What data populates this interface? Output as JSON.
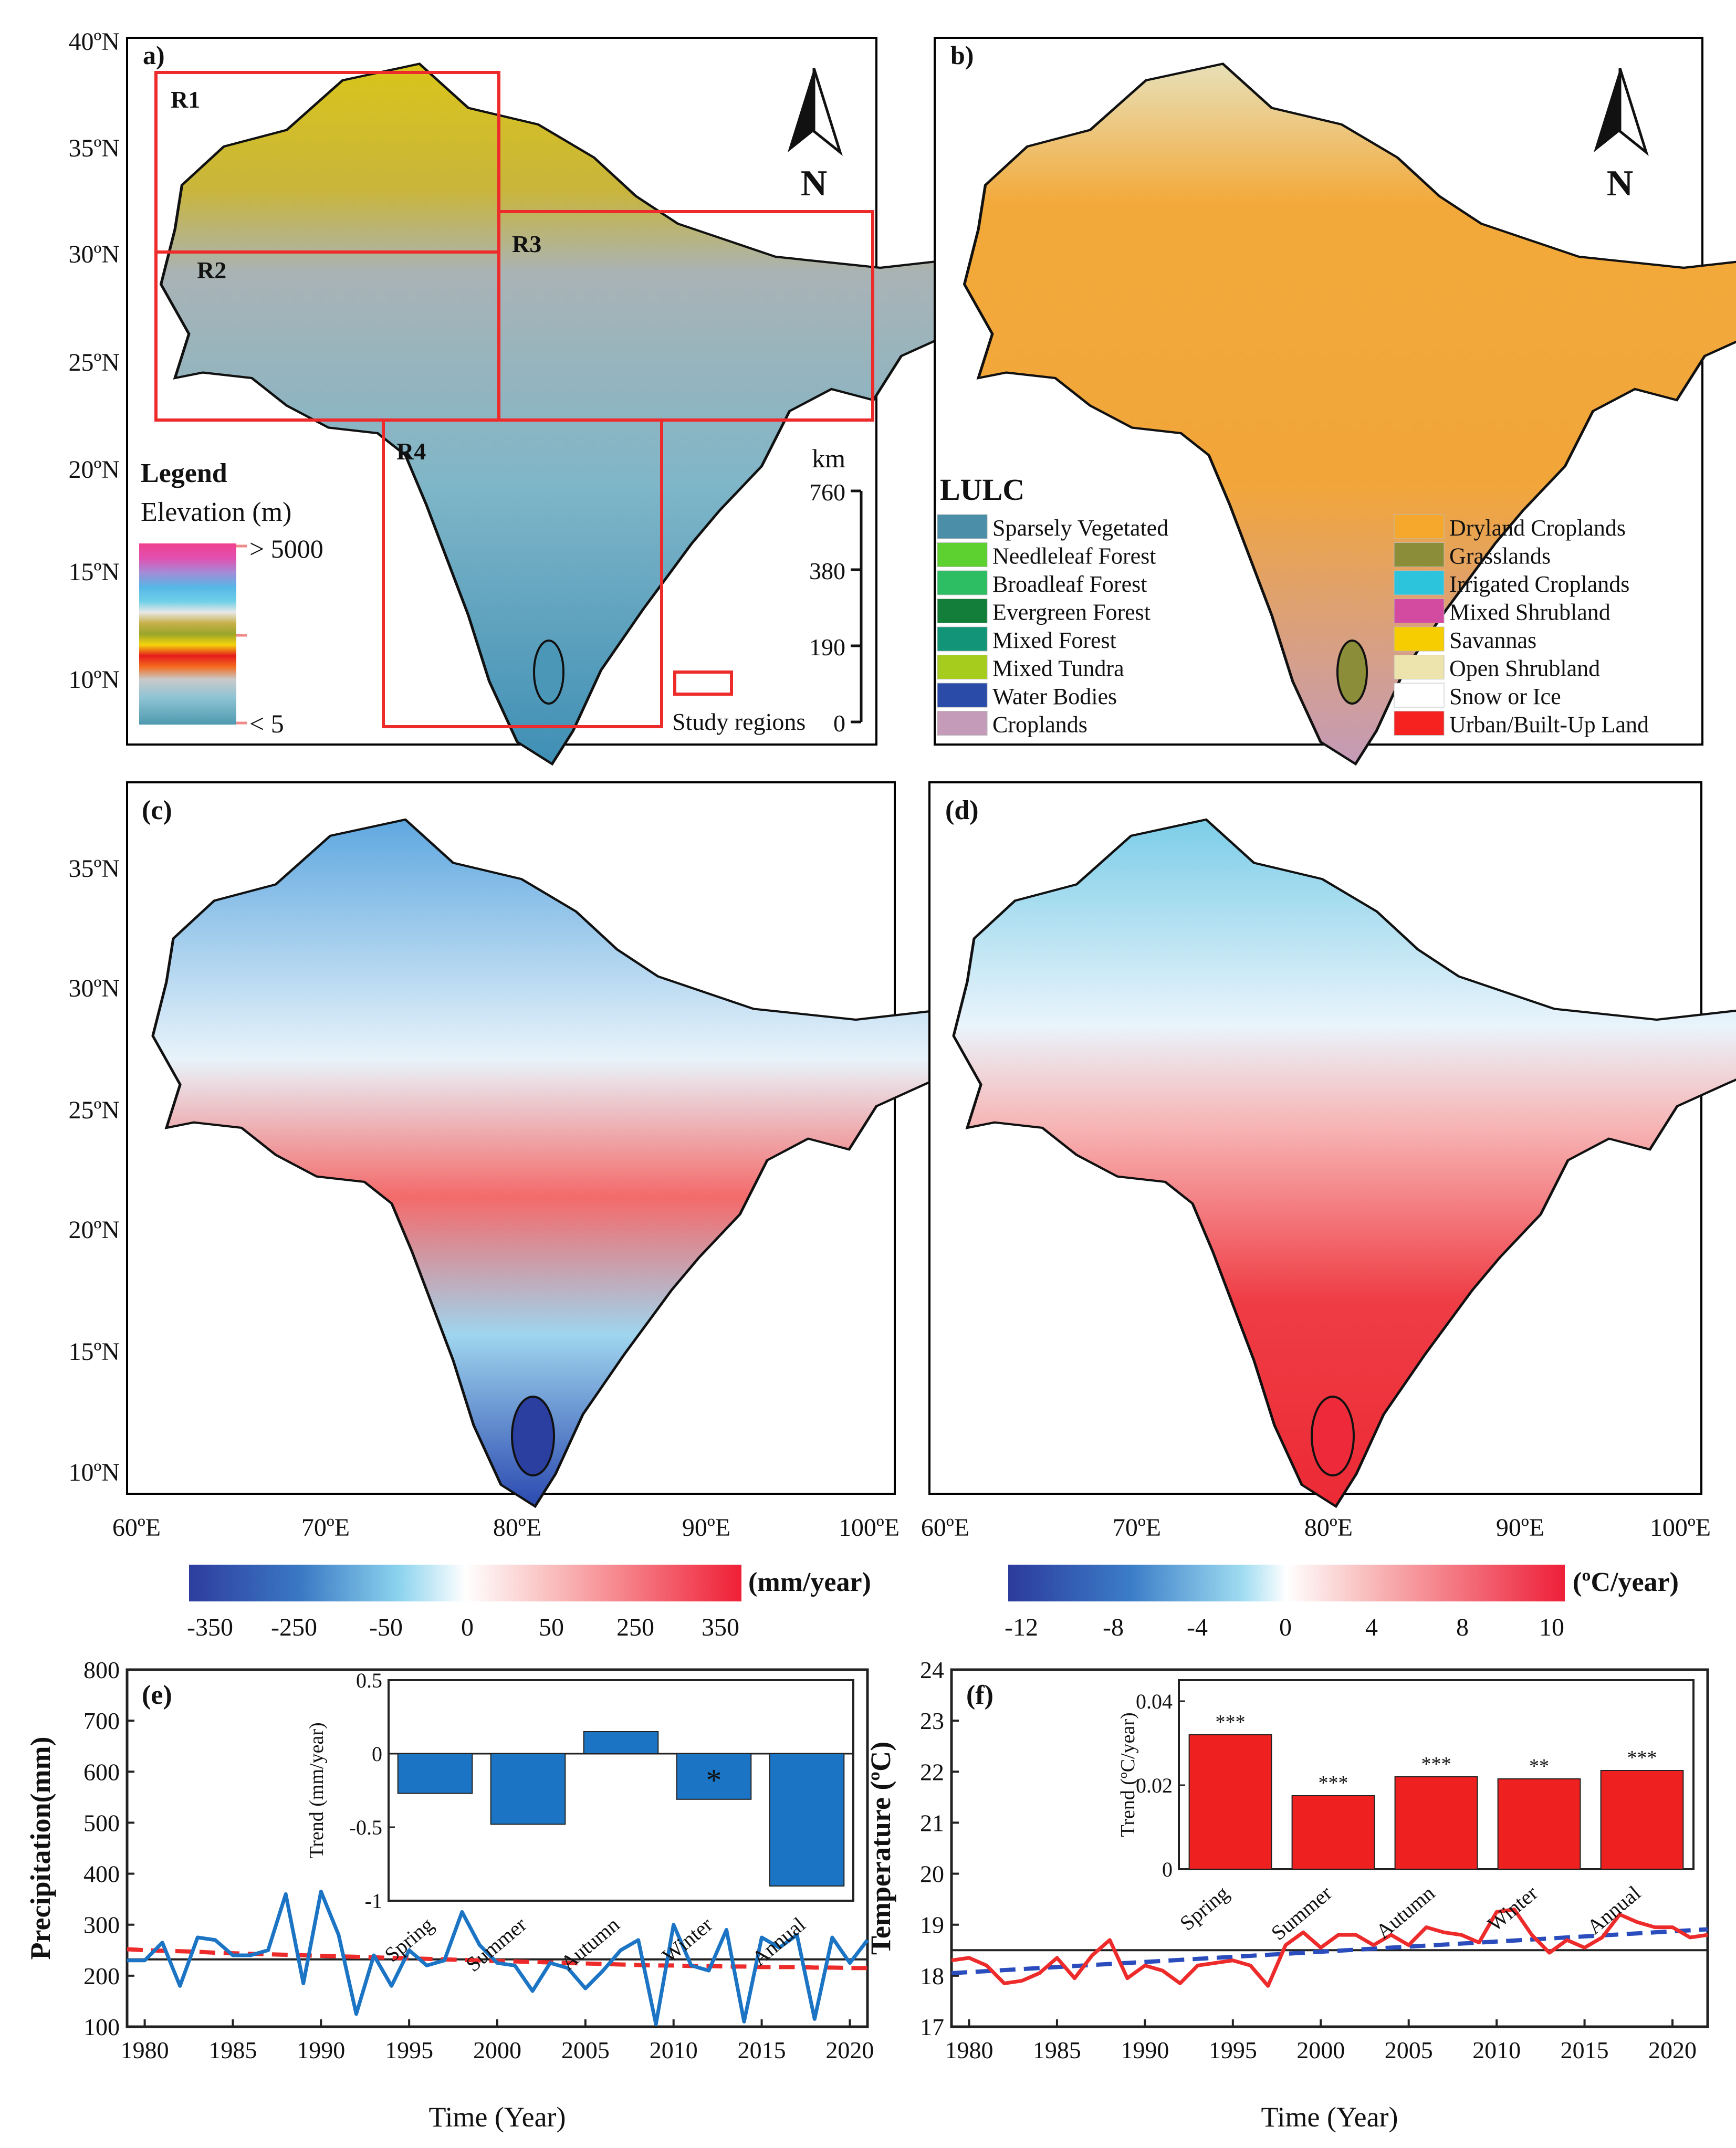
{
  "panel_a": {
    "label": "a)",
    "lat_ticks": [
      "40ºN",
      "35ºN",
      "30ºN",
      "25ºN",
      "20ºN",
      "15ºN",
      "10ºN"
    ],
    "regions": [
      "R1",
      "R2",
      "R3",
      "R4"
    ],
    "legend_title": "Legend",
    "elevation_label": "Elevation (m)",
    "elevation_high": "> 5000",
    "elevation_low": "< 5",
    "scale_unit": "km",
    "scale_ticks": [
      "760",
      "380",
      "190",
      "0"
    ],
    "study_regions_label": "Study regions",
    "north_label": "N",
    "colors": {
      "region_box": "#ee2b2b",
      "lowland": "#a9b3b6",
      "highland": "#d9c51a",
      "coast": "#3f8fb5"
    }
  },
  "panel_b": {
    "label": "b)",
    "north_label": "N",
    "legend_title": "LULC",
    "classes_left": [
      {
        "name": "Sparsely Vegetated",
        "color": "#4a8ea8"
      },
      {
        "name": "Needleleaf Forest",
        "color": "#5dd12f"
      },
      {
        "name": "Broadleaf Forest",
        "color": "#2dbd62"
      },
      {
        "name": "Evergreen Forest",
        "color": "#137e3a"
      },
      {
        "name": "Mixed Forest",
        "color": "#119477"
      },
      {
        "name": "Mixed Tundra",
        "color": "#a6cc1e"
      },
      {
        "name": "Water Bodies",
        "color": "#2a4ca8"
      },
      {
        "name": "Croplands",
        "color": "#c49bb9"
      }
    ],
    "classes_right": [
      {
        "name": "Dryland Croplands",
        "color": "#f5a82c"
      },
      {
        "name": "Grasslands",
        "color": "#8c8d38"
      },
      {
        "name": "Irrigated Croplands",
        "color": "#2cc4dd"
      },
      {
        "name": "Mixed Shrubland",
        "color": "#d34aa1"
      },
      {
        "name": "Savannas",
        "color": "#f5cd00"
      },
      {
        "name": "Open Shrubland",
        "color": "#ede3ad"
      },
      {
        "name": "Snow or Ice",
        "color": "#ffffff"
      },
      {
        "name": "Urban/Built-Up Land",
        "color": "#f5221f"
      }
    ]
  },
  "panel_c": {
    "label": "(c)",
    "lat_ticks": [
      "35ºN",
      "30ºN",
      "25ºN",
      "20ºN",
      "15ºN",
      "10ºN"
    ],
    "lon_ticks": [
      "60ºE",
      "70ºE",
      "80ºE",
      "90ºE",
      "100ºE"
    ],
    "colorbar_unit": "(mm/year)",
    "colorbar_ticks": [
      "-350",
      "-250",
      "-50",
      "0",
      "50",
      "250",
      "350"
    ],
    "colors": {
      "wet": "#f02a33",
      "dry": "#2e41a8"
    }
  },
  "panel_d": {
    "label": "(d)",
    "lon_ticks": [
      "60ºE",
      "70ºE",
      "80ºE",
      "90ºE",
      "100ºE"
    ],
    "colorbar_unit": "(ºC/year)",
    "colorbar_ticks": [
      "-12",
      "-8",
      "-4",
      "0",
      "4",
      "8",
      "10"
    ],
    "colors": {
      "warm": "#ec2a35",
      "cool": "#7ccde8"
    }
  },
  "panel_e": {
    "label": "(e)",
    "ylabel": "Precipitation(mm)",
    "xlabel": "Time (Year)",
    "yticks": [
      "800",
      "700",
      "600",
      "500",
      "400",
      "300",
      "200",
      "100"
    ],
    "xticks": [
      "1980",
      "1985",
      "1990",
      "1995",
      "2000",
      "2005",
      "2010",
      "2015",
      "2020"
    ],
    "inset_ylabel": "Trend (mm/year)",
    "inset_yticks": [
      "0.5",
      "0",
      "-0.5",
      "-1"
    ],
    "inset_significance": "*",
    "colors": {
      "series": "#1b74c4",
      "trend": "#ee2b2b",
      "mean": "#222222"
    }
  },
  "panel_f": {
    "label": "(f)",
    "ylabel": "Temperature (ºC)",
    "xlabel": "Time (Year)",
    "yticks": [
      "24",
      "23",
      "22",
      "21",
      "20",
      "19",
      "18",
      "17"
    ],
    "xticks": [
      "1980",
      "1985",
      "1990",
      "1995",
      "2000",
      "2005",
      "2010",
      "2015",
      "2020"
    ],
    "inset_ylabel": "Trend (ºC/year)",
    "inset_yticks": [
      "0.04",
      "0.02",
      "0"
    ],
    "inset_significance": [
      "***",
      "***",
      "***",
      "**",
      "***"
    ],
    "colors": {
      "series": "#ee2b2b",
      "trend": "#2a4cbc",
      "mean": "#222222",
      "bars": "#ee2020"
    }
  },
  "chart_data": [
    {
      "type": "line",
      "title": "(e)",
      "xlabel": "Time (Year)",
      "ylabel": "Precipitation(mm)",
      "xlim": [
        1979,
        2021
      ],
      "ylim": [
        100,
        800
      ],
      "x": [
        1979,
        1980,
        1981,
        1982,
        1983,
        1984,
        1985,
        1986,
        1987,
        1988,
        1989,
        1990,
        1991,
        1992,
        1993,
        1994,
        1995,
        1996,
        1997,
        1998,
        1999,
        2000,
        2001,
        2002,
        2003,
        2004,
        2005,
        2006,
        2007,
        2008,
        2009,
        2010,
        2011,
        2012,
        2013,
        2014,
        2015,
        2016,
        2017,
        2018,
        2019,
        2020,
        2021
      ],
      "series": [
        {
          "name": "Precipitation",
          "values": [
            230,
            230,
            265,
            180,
            275,
            270,
            240,
            240,
            250,
            360,
            185,
            365,
            280,
            125,
            240,
            180,
            250,
            220,
            230,
            325,
            260,
            225,
            220,
            170,
            225,
            215,
            175,
            210,
            250,
            270,
            105,
            300,
            220,
            210,
            290,
            110,
            275,
            255,
            280,
            115,
            275,
            225,
            270
          ]
        },
        {
          "name": "Trend",
          "values": [
            252,
            250,
            249,
            248,
            247,
            245,
            244,
            243,
            242,
            241,
            240,
            239,
            238,
            237,
            236,
            235,
            234,
            233,
            232,
            231,
            230,
            229,
            228,
            227,
            226,
            225,
            224,
            223,
            222,
            221,
            220,
            220,
            219,
            219,
            218,
            218,
            217,
            217,
            217,
            216,
            216,
            215,
            215
          ]
        },
        {
          "name": "Mean",
          "values": [
            232,
            232,
            232,
            232,
            232,
            232,
            232,
            232,
            232,
            232,
            232,
            232,
            232,
            232,
            232,
            232,
            232,
            232,
            232,
            232,
            232,
            232,
            232,
            232,
            232,
            232,
            232,
            232,
            232,
            232,
            232,
            232,
            232,
            232,
            232,
            232,
            232,
            232,
            232,
            232,
            232,
            232,
            232
          ]
        }
      ]
    },
    {
      "type": "bar",
      "title": "(e) inset",
      "ylabel": "Trend (mm/year)",
      "ylim": [
        -1,
        0.5
      ],
      "categories": [
        "Spring",
        "Summer",
        "Autumn",
        "Winter",
        "Annual"
      ],
      "values": [
        -0.27,
        -0.48,
        0.15,
        -0.31,
        -0.9
      ]
    },
    {
      "type": "line",
      "title": "(f)",
      "xlabel": "Time (Year)",
      "ylabel": "Temperature (ºC)",
      "xlim": [
        1979,
        2022
      ],
      "ylim": [
        17,
        24
      ],
      "x": [
        1979,
        1980,
        1981,
        1982,
        1983,
        1984,
        1985,
        1986,
        1987,
        1988,
        1989,
        1990,
        1991,
        1992,
        1993,
        1994,
        1995,
        1996,
        1997,
        1998,
        1999,
        2000,
        2001,
        2002,
        2003,
        2004,
        2005,
        2006,
        2007,
        2008,
        2009,
        2010,
        2011,
        2012,
        2013,
        2014,
        2015,
        2016,
        2017,
        2018,
        2019,
        2020,
        2021,
        2022
      ],
      "series": [
        {
          "name": "Temperature",
          "values": [
            18.3,
            18.35,
            18.2,
            17.85,
            17.9,
            18.05,
            18.35,
            17.95,
            18.4,
            18.7,
            17.95,
            18.2,
            18.1,
            17.85,
            18.2,
            18.25,
            18.3,
            18.2,
            17.8,
            18.6,
            18.85,
            18.55,
            18.8,
            18.8,
            18.6,
            18.8,
            18.6,
            18.95,
            18.85,
            18.8,
            18.65,
            19.25,
            19.3,
            18.8,
            18.45,
            18.7,
            18.55,
            18.75,
            19.2,
            19.05,
            18.95,
            18.95,
            18.75,
            18.8
          ]
        },
        {
          "name": "Trend",
          "values": [
            18.05,
            18.07,
            18.09,
            18.11,
            18.13,
            18.15,
            18.17,
            18.19,
            18.21,
            18.23,
            18.25,
            18.27,
            18.29,
            18.31,
            18.33,
            18.35,
            18.37,
            18.39,
            18.41,
            18.43,
            18.45,
            18.47,
            18.49,
            18.51,
            18.53,
            18.55,
            18.57,
            18.59,
            18.61,
            18.63,
            18.65,
            18.67,
            18.69,
            18.71,
            18.73,
            18.75,
            18.77,
            18.79,
            18.81,
            18.83,
            18.85,
            18.87,
            18.89,
            18.91
          ]
        },
        {
          "name": "Mean",
          "values": [
            18.5,
            18.5,
            18.5,
            18.5,
            18.5,
            18.5,
            18.5,
            18.5,
            18.5,
            18.5,
            18.5,
            18.5,
            18.5,
            18.5,
            18.5,
            18.5,
            18.5,
            18.5,
            18.5,
            18.5,
            18.5,
            18.5,
            18.5,
            18.5,
            18.5,
            18.5,
            18.5,
            18.5,
            18.5,
            18.5,
            18.5,
            18.5,
            18.5,
            18.5,
            18.5,
            18.5,
            18.5,
            18.5,
            18.5,
            18.5,
            18.5,
            18.5,
            18.5,
            18.5
          ]
        }
      ]
    },
    {
      "type": "bar",
      "title": "(f) inset",
      "ylabel": "Trend (ºC/year)",
      "ylim": [
        0,
        0.045
      ],
      "categories": [
        "Spring",
        "Summer",
        "Autumn",
        "Winter",
        "Annual"
      ],
      "values": [
        0.032,
        0.0175,
        0.022,
        0.0215,
        0.0235
      ]
    }
  ]
}
